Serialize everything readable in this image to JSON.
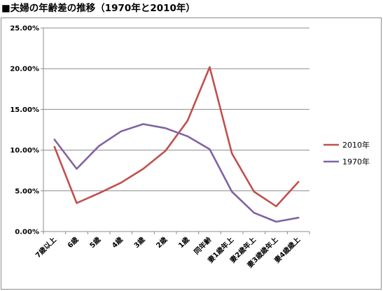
{
  "header": {
    "title": "■夫婦の年齢差の推移（1970年と2010年）"
  },
  "chart_data": {
    "type": "line",
    "categories": [
      "7歳以上",
      "6歳",
      "5歳",
      "4歳",
      "3歳",
      "2歳",
      "1歳",
      "同年齢",
      "妻1歳年上",
      "妻2歳年上",
      "妻3歳歳年上",
      "妻4歳歳上"
    ],
    "series": [
      {
        "name": "2010年",
        "color": "#c0504d",
        "values": [
          10.4,
          3.5,
          4.7,
          6.0,
          7.7,
          9.9,
          13.6,
          20.2,
          9.6,
          4.9,
          3.1,
          6.1
        ]
      },
      {
        "name": "1970年",
        "color": "#8064a2",
        "values": [
          11.3,
          7.7,
          10.5,
          12.3,
          13.2,
          12.7,
          11.7,
          10.1,
          4.9,
          2.3,
          1.2,
          1.7
        ]
      }
    ],
    "yticks": [
      "0.00%",
      "5.00%",
      "10.00%",
      "15.00%",
      "20.00%",
      "25.00%"
    ],
    "ylim": [
      0,
      25
    ],
    "grid": true,
    "legend_position": "right"
  }
}
